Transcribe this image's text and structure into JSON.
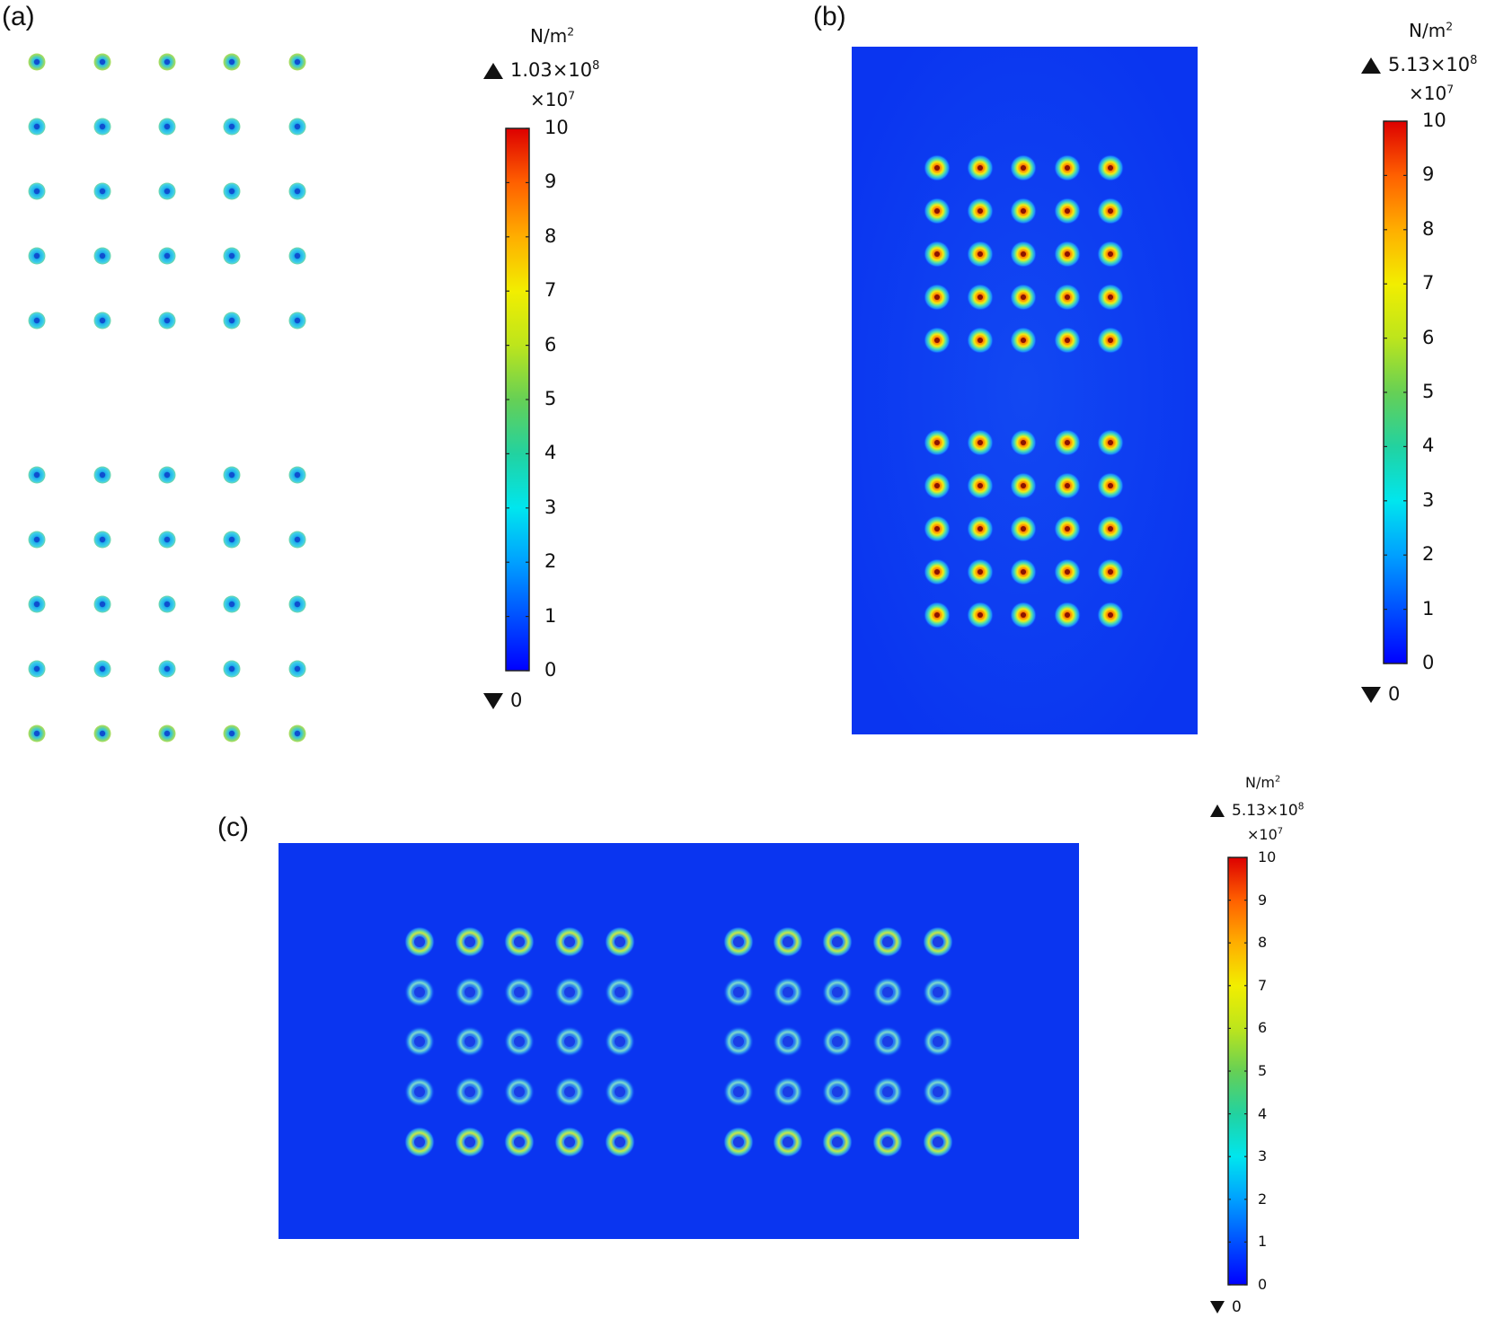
{
  "panels": [
    {
      "label": "(a)",
      "unit_base": "N/m",
      "unit_exp": "2",
      "max_base": "1.03×10",
      "max_exp": "8",
      "mult_base": "×10",
      "mult_exp": "7",
      "min": "0",
      "ticks": [
        "0",
        "1",
        "2",
        "3",
        "4",
        "5",
        "6",
        "7",
        "8",
        "9",
        "10"
      ]
    },
    {
      "label": "(b)",
      "unit_base": "N/m",
      "unit_exp": "2",
      "max_base": "5.13×10",
      "max_exp": "8",
      "mult_base": "×10",
      "mult_exp": "7",
      "min": "0",
      "ticks": [
        "0",
        "1",
        "2",
        "3",
        "4",
        "5",
        "6",
        "7",
        "8",
        "9",
        "10"
      ]
    },
    {
      "label": "(c)",
      "unit_base": "N/m",
      "unit_exp": "2",
      "max_base": "5.13×10",
      "max_exp": "8",
      "mult_base": "×10",
      "mult_exp": "7",
      "min": "0",
      "ticks": [
        "0",
        "1",
        "2",
        "3",
        "4",
        "5",
        "6",
        "7",
        "8",
        "9",
        "10"
      ]
    }
  ],
  "colors": {
    "plate": "#0a35f0",
    "colormap": [
      "#0000ff",
      "#0055ff",
      "#00aaff",
      "#00eeee",
      "#33dd88",
      "#99dd22",
      "#eeee00",
      "#ffbb00",
      "#ff7700",
      "#ff3300",
      "#dd0000"
    ]
  },
  "arrays": {
    "a": {
      "rows_per_group": 5,
      "cols": 5,
      "groups": 2
    },
    "b": {
      "rows_per_group": 5,
      "cols": 5,
      "groups": 2
    },
    "c": {
      "rows": 5,
      "cols_per_group": 5,
      "groups": 2
    }
  }
}
